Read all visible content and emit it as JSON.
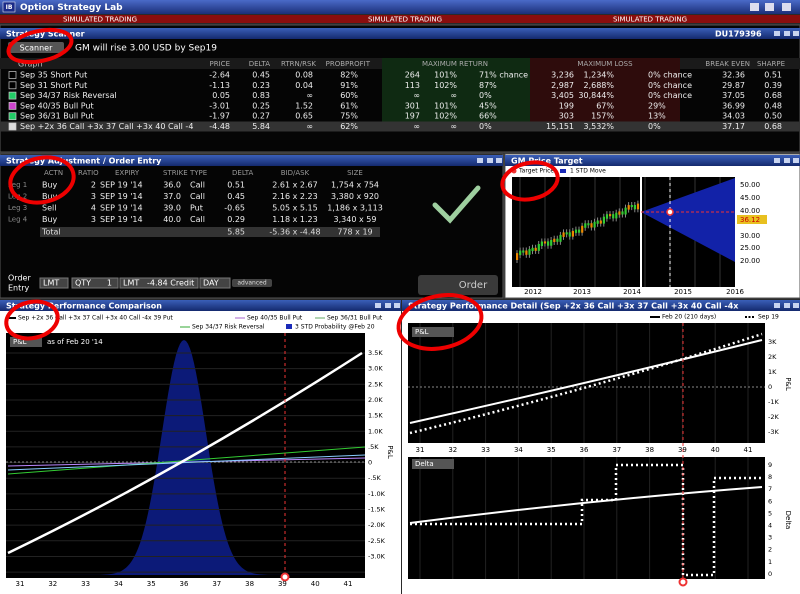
{
  "title_bar": {
    "app": "IB",
    "title": "Option Strategy Lab",
    "banners": [
      "SIMULATED TRADING",
      "SIMULATED TRADING",
      "SIMULATED TRADING"
    ]
  },
  "scanner": {
    "title": "Strategy Scanner",
    "account": "DU179396",
    "button": "Scanner",
    "query": "GM will rise 3.00 USD by Sep19",
    "graph_label": "Graph",
    "columns": [
      "PRICE",
      "DELTA",
      "RTRN/RSK",
      "PROBPROFIT",
      "MAXIMUM RETURN",
      "MAXIMUM LOSS",
      "BREAK EVEN",
      "SHARPE"
    ],
    "rows": [
      {
        "name": "Sep 35 Short Put",
        "cells": [
          "-2.64",
          "0.45",
          "0.08",
          "82%",
          "264",
          "101%",
          "71% chance",
          "3,236",
          "1,234%",
          "0% chance",
          "32.36",
          "0.51"
        ]
      },
      {
        "name": "Sep 31 Short Put",
        "cells": [
          "-1.13",
          "0.23",
          "0.04",
          "91%",
          "113",
          "102%",
          "87%",
          "2,987",
          "2,688%",
          "0% chance",
          "29.87",
          "0.39"
        ]
      },
      {
        "name": "Sep 34/37 Risk Reversal",
        "cells": [
          "0.05",
          "0.83",
          "∞",
          "60%",
          "∞",
          "∞",
          "0%",
          "3,405",
          "30,844%",
          "0% chance",
          "37.05",
          "0.68"
        ]
      },
      {
        "name": "Sep 40/35 Bull Put",
        "cells": [
          "-3.01",
          "0.25",
          "1.52",
          "61%",
          "301",
          "101%",
          "45%",
          "199",
          "67%",
          "29%",
          "36.99",
          "0.48"
        ]
      },
      {
        "name": "Sep 36/31 Bull Put",
        "cells": [
          "-1.97",
          "0.27",
          "0.65",
          "75%",
          "197",
          "102%",
          "66%",
          "303",
          "157%",
          "13%",
          "34.03",
          "0.50"
        ]
      },
      {
        "name": "Sep +2x 36 Call +3x 37 Call +3x 40 Call -4",
        "cells": [
          "-4.48",
          "5.84",
          "∞",
          "62%",
          "∞",
          "∞",
          "0%",
          "15,151",
          "3,532%",
          "0%",
          "37.17",
          "0.68"
        ]
      }
    ]
  },
  "order": {
    "title": "Strategy Adjustment / Order Entry",
    "columns": [
      "ACTN",
      "RATIO",
      "EXPIRY",
      "STRIKE",
      "TYPE",
      "DELTA",
      "BID/ASK",
      "SIZE"
    ],
    "legs": [
      {
        "leg": "Leg 1",
        "actn": "Buy",
        "ratio": "2",
        "expiry": "SEP 19 '14",
        "strike": "36.0",
        "type": "Call",
        "delta": "0.51",
        "bidask": "2.61 x 2.67",
        "size": "1,754 x 754"
      },
      {
        "leg": "Leg 2",
        "actn": "Buy",
        "ratio": "3",
        "expiry": "SEP 19 '14",
        "strike": "37.0",
        "type": "Call",
        "delta": "0.45",
        "bidask": "2.16 x 2.23",
        "size": "3,380 x 920"
      },
      {
        "leg": "Leg 3",
        "actn": "Sell",
        "ratio": "4",
        "expiry": "SEP 19 '14",
        "strike": "39.0",
        "type": "Put",
        "delta": "-0.65",
        "bidask": "5.05 x 5.15",
        "size": "1,186 x 3,113"
      },
      {
        "leg": "Leg 4",
        "actn": "Buy",
        "ratio": "3",
        "expiry": "SEP 19 '14",
        "strike": "40.0",
        "type": "Call",
        "delta": "0.29",
        "bidask": "1.18 x 1.23",
        "size": "3,340 x 59"
      }
    ],
    "total": {
      "label": "Total",
      "delta": "5.85",
      "bidask": "-5.36 x -4.48",
      "size": "778 x 19"
    },
    "entry": {
      "label_1": "Order",
      "label_2": "Entry",
      "type": "LMT",
      "qty_label": "QTY",
      "qty": "1",
      "price_type": "LMT",
      "price": "-4.84 Credit",
      "tif": "DAY",
      "advanced": "advanced",
      "submit": "Order"
    }
  },
  "price_target": {
    "title": "GM Price Target",
    "legend": [
      "Target Price",
      "1 STD Move"
    ],
    "y_labels": [
      "50.00",
      "45.00",
      "40.00",
      "36.12",
      "30.00",
      "25.00",
      "20.00"
    ],
    "x_labels": [
      "2012",
      "2013",
      "2014",
      "2015",
      "2016"
    ]
  },
  "comparison": {
    "title": "Strategy Performance Comparison",
    "legend": [
      "Sep +2x 36 Call +3x 37 Call +3x 40 Call -4x 39 Put",
      "Sep 40/35 Bull Put",
      "Sep 36/31 Bull Put",
      "Sep 34/37 Risk Reversal",
      "3 STD Probability @Feb 20"
    ],
    "dropdown": "P&L",
    "as_of": "as of Feb 20 '14",
    "y_labels": [
      "3.5K",
      "3.0K",
      "2.5K",
      "2.0K",
      "1.5K",
      "1.0K",
      ".5K",
      "0",
      "-.5K",
      "-1.0K",
      "-1.5K",
      "-2.0K",
      "-2.5K",
      "-3.0K"
    ],
    "y_axis": "P&L",
    "x_labels": [
      "31",
      "32",
      "33",
      "34",
      "35",
      "36",
      "37",
      "38",
      "39",
      "40",
      "41"
    ]
  },
  "detail": {
    "title": "Strategy Performance Detail (Sep +2x 36 Call +3x 37 Call +3x 40 Call -4x",
    "legend": [
      "Feb 20 (210 days)",
      "Sep 19"
    ],
    "pnl": {
      "dropdown": "P&L",
      "y_labels": [
        "3K",
        "2K",
        "1K",
        "0",
        "-1K",
        "-2K",
        "-3K"
      ],
      "y_axis": "P&L"
    },
    "x_labels": [
      "31",
      "32",
      "33",
      "34",
      "35",
      "36",
      "37",
      "38",
      "39",
      "40",
      "41"
    ],
    "delta": {
      "dropdown": "Delta",
      "y_labels": [
        "9",
        "8",
        "7",
        "6",
        "5",
        "4",
        "3",
        "2",
        "1",
        "0"
      ],
      "y_axis": "Delta"
    }
  }
}
